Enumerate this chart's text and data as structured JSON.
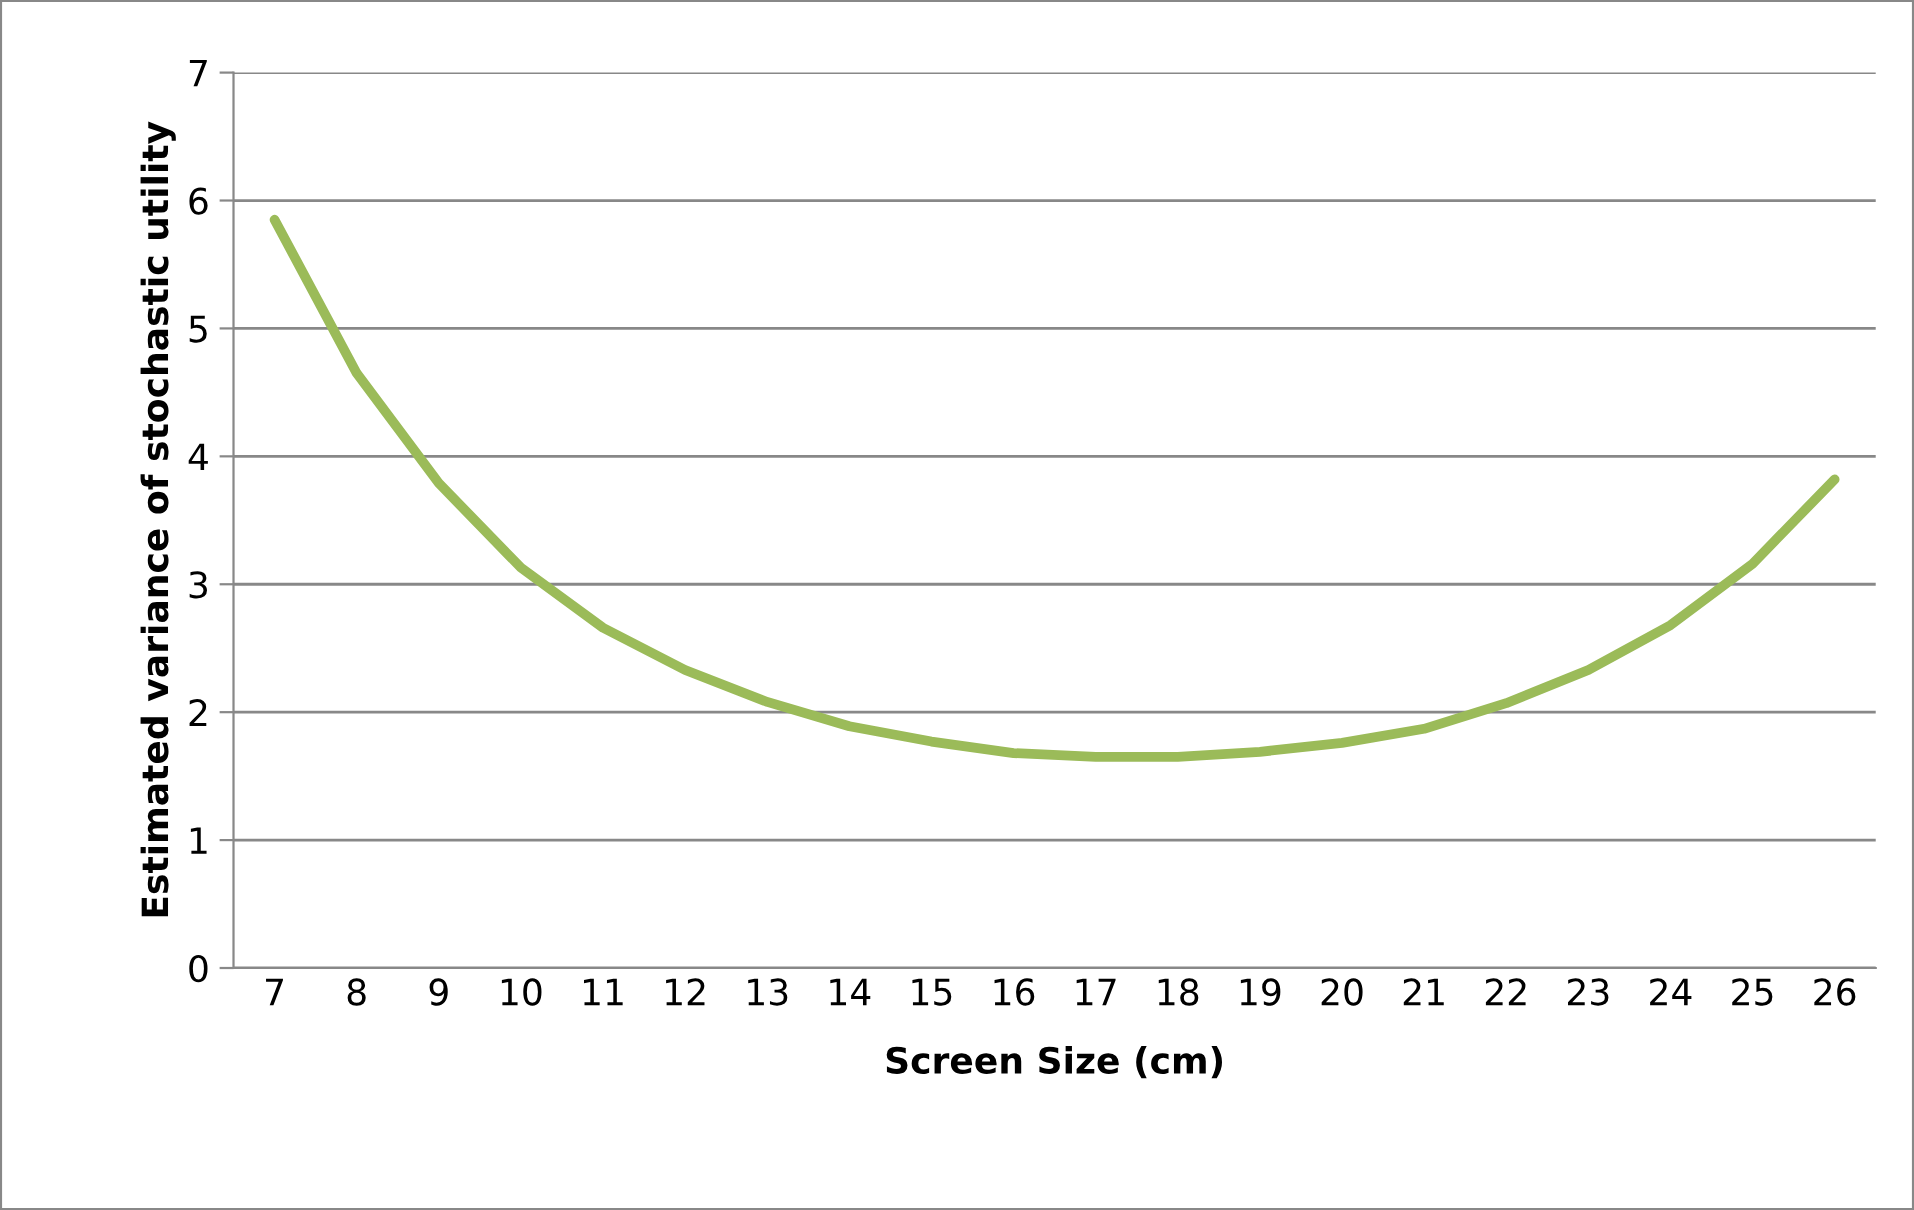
{
  "chart_data": {
    "type": "line",
    "xlabel": "Screen Size (cm)",
    "ylabel": "Estimated variance of stochastic utility",
    "categories": [
      "7",
      "8",
      "9",
      "10",
      "11",
      "12",
      "13",
      "14",
      "15",
      "16",
      "17",
      "18",
      "19",
      "20",
      "21",
      "22",
      "23",
      "24",
      "25",
      "26"
    ],
    "series": [
      {
        "color": "#9bbb59",
        "values": [
          5.85,
          4.65,
          3.79,
          3.13,
          2.66,
          2.33,
          2.08,
          1.89,
          1.77,
          1.68,
          1.65,
          1.65,
          1.69,
          1.76,
          1.87,
          2.07,
          2.33,
          2.68,
          3.16,
          3.82
        ]
      }
    ],
    "ylim": [
      0,
      7
    ],
    "yticks": [
      0,
      1,
      2,
      3,
      4,
      5,
      6,
      7
    ],
    "grid": "y",
    "legend": false,
    "marker": "none",
    "line_style": "solid"
  }
}
